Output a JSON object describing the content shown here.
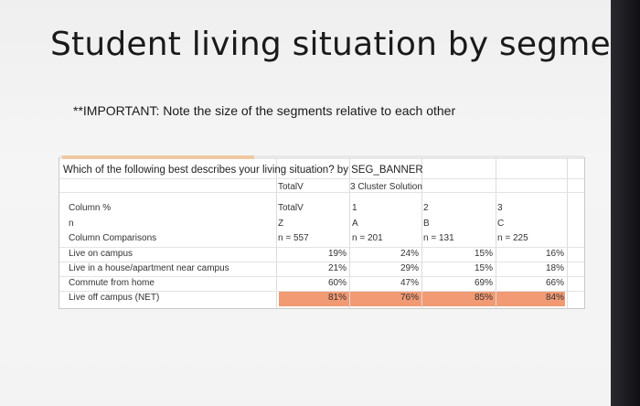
{
  "slide": {
    "title": "Student living situation by segment",
    "note": "**IMPORTANT: Note the size of the segments relative to each other"
  },
  "table": {
    "question": "Which of the following best describes your living situation? by SEG_BANNER",
    "header": {
      "total_top": "TotalV",
      "cluster": "3 Cluster Solution",
      "total": "TotalV",
      "seg1": "1",
      "seg2": "2",
      "seg3": "3",
      "total_letter": "Z",
      "a": "A",
      "b": "B",
      "c": "C",
      "n_total": "n = 557",
      "n_a": "n = 201",
      "n_b": "n = 131",
      "n_c": "n = 225"
    },
    "row_labels": {
      "column_pct": "Column %",
      "n": "n",
      "comparisons": "Column Comparisons"
    },
    "rows": [
      {
        "label": "Live on campus",
        "total": "19%",
        "a": "24%",
        "b": "15%",
        "c": "16%"
      },
      {
        "label": "Live in a house/apartment near campus",
        "total": "21%",
        "a": "29%",
        "b": "15%",
        "c": "18%"
      },
      {
        "label": "Commute from home",
        "total": "60%",
        "a": "47%",
        "b": "69%",
        "c": "66%"
      },
      {
        "label": "Live off campus (NET)",
        "total": "81%",
        "a": "76%",
        "b": "85%",
        "c": "84%"
      }
    ],
    "highlight_color": "#f29a73"
  }
}
